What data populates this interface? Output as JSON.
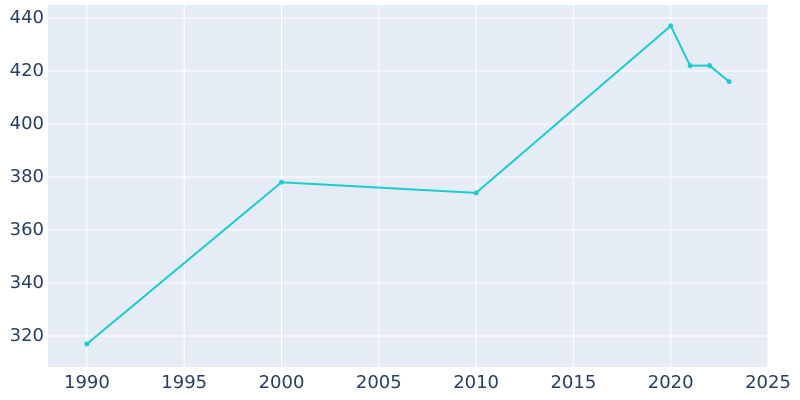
{
  "chart_data": {
    "type": "line",
    "x": [
      1990,
      2000,
      2010,
      2020,
      2021,
      2022,
      2023
    ],
    "series": [
      {
        "color": "#1ccbcb",
        "values": [
          317,
          378,
          374,
          437,
          422,
          422,
          416
        ]
      }
    ],
    "xlim": [
      1988,
      2025
    ],
    "xticks": [
      1990,
      1995,
      2000,
      2005,
      2010,
      2015,
      2020,
      2025
    ],
    "ylim": [
      308.3,
      444.9
    ],
    "yticks": [
      320,
      340,
      360,
      380,
      400,
      420,
      440
    ],
    "grid": true
  }
}
